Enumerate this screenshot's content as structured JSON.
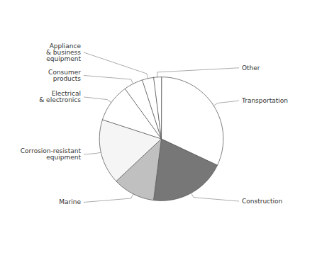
{
  "chart_data": {
    "type": "pie",
    "categories": [
      "Transportation",
      "Construction",
      "Marine",
      "Corrosion-resistant\nequipment",
      "Electrical\n& electronics",
      "Consumer\nproducts",
      "Appliance\n& business\nequipment",
      "Other"
    ],
    "values": [
      32,
      20,
      11,
      17,
      10,
      5,
      3,
      2
    ],
    "colors": [
      "#ffffff",
      "#777777",
      "#c0c0c0",
      "#f5f5f5",
      "#ffffff",
      "#ffffff",
      "#ffffff",
      "#ffffff"
    ]
  }
}
